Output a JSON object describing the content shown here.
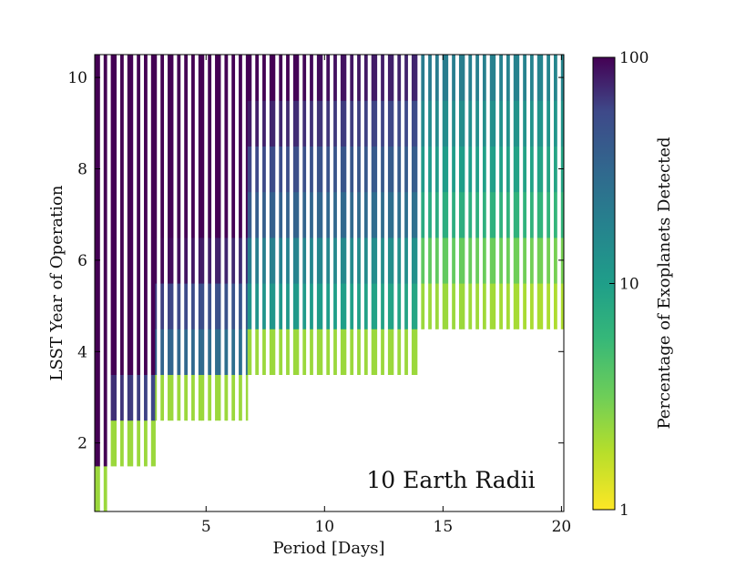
{
  "chart_data": {
    "type": "heatmap",
    "title": "",
    "annotation": "10 Earth Radii",
    "xlabel": "Period [Days]",
    "ylabel": "LSST Year of Operation",
    "xlim": [
      0.3,
      20.1
    ],
    "ylim": [
      0.5,
      10.5
    ],
    "xticks": [
      5,
      10,
      15,
      20
    ],
    "yticks": [
      2,
      4,
      6,
      8,
      10
    ],
    "colorbar": {
      "label": "Percentage of Exoplanets Detected",
      "scale": "log",
      "range": [
        1,
        100
      ],
      "ticks": [
        1,
        10,
        100
      ],
      "tick_labels": [
        "1",
        "10",
        "100"
      ],
      "colormap": "viridis"
    },
    "years": [
      1,
      2,
      3,
      4,
      5,
      6,
      7,
      8,
      9,
      10
    ],
    "bar_width_days": 0.15,
    "gap_columns_days": [
      0.6,
      0.9,
      1.3,
      1.6,
      2.0,
      2.3,
      2.6,
      3.0,
      3.3,
      3.7,
      4.0,
      4.3,
      4.6,
      5.0,
      5.3,
      5.7,
      6.0,
      6.3,
      6.6,
      7.0,
      7.3,
      7.6,
      8.0,
      8.3,
      8.6,
      9.0,
      9.3,
      9.6,
      10.0,
      10.3,
      10.6,
      11.0,
      11.3,
      11.6,
      11.9,
      12.3,
      12.6,
      13.0,
      13.3,
      13.6,
      14.0,
      14.3,
      14.6,
      14.9,
      15.3,
      15.6,
      16.0,
      16.3,
      16.6,
      16.9,
      17.3,
      17.6,
      17.9,
      18.3,
      18.6,
      18.9,
      19.3,
      19.6,
      19.9
    ],
    "year_profile_percent": {
      "1": 0.6,
      "2": 0.8,
      "3": 1.8,
      "4": 4,
      "5": 7,
      "6": 11,
      "7": 22,
      "8": 32,
      "9": 45,
      "10": 62
    },
    "first_detection_year_by_period": [
      {
        "p_max": 0.9,
        "year": 1
      },
      {
        "p_max": 2.9,
        "year": 2
      },
      {
        "p_max": 6.8,
        "year": 3
      },
      {
        "p_max": 14.0,
        "year": 4
      },
      {
        "p_max": 20.0,
        "year": 5
      }
    ]
  }
}
